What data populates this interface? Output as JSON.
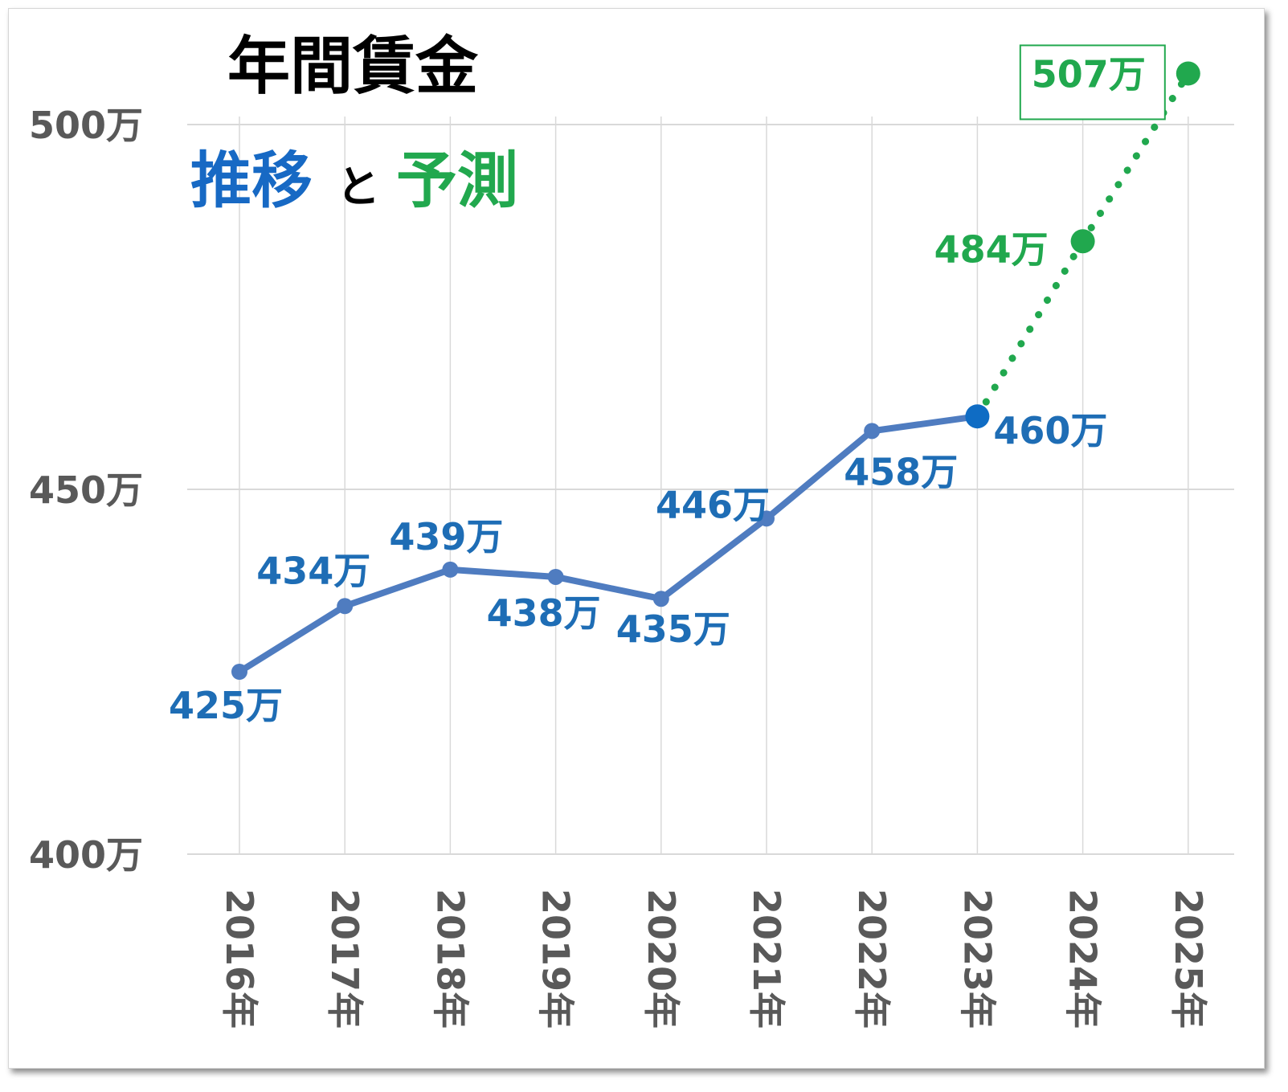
{
  "colors": {
    "actual": "#4f7cc0",
    "actual_label": "#1e6db5",
    "actual_end_marker": "#0f6cc4",
    "forecast": "#21a84e",
    "grid": "#d9d9d9",
    "axis_text": "#595959",
    "title": "#000000",
    "subtitle_part1": "#1769c4",
    "subtitle_part3": "#21a84e"
  },
  "chart_data": {
    "type": "line",
    "title": "年間賃金",
    "subtitle": {
      "part1": "推移",
      "part2": "と",
      "part3": "予測"
    },
    "xlabel": "",
    "ylabel": "",
    "categories": [
      "2016年",
      "2017年",
      "2018年",
      "2019年",
      "2020年",
      "2021年",
      "2022年",
      "2023年",
      "2024年",
      "2025年"
    ],
    "ylim": [
      400,
      500
    ],
    "yticks": [
      {
        "value": 400,
        "label": "400万"
      },
      {
        "value": 450,
        "label": "450万"
      },
      {
        "value": 500,
        "label": "500万"
      }
    ],
    "grid": true,
    "legend": "none",
    "series": [
      {
        "style": "solid",
        "values": [
          425,
          434,
          439,
          438,
          435,
          446,
          458,
          460,
          null,
          null
        ],
        "labels": [
          "425万",
          "434万",
          "439万",
          "438万",
          "435万",
          "446万",
          "458万",
          "460万",
          "",
          ""
        ]
      },
      {
        "style": "dotted",
        "values": [
          null,
          null,
          null,
          null,
          null,
          null,
          null,
          460,
          484,
          507
        ],
        "labels": [
          "",
          "",
          "",
          "",
          "",
          "",
          "",
          "",
          "484万",
          "507万"
        ]
      }
    ]
  }
}
